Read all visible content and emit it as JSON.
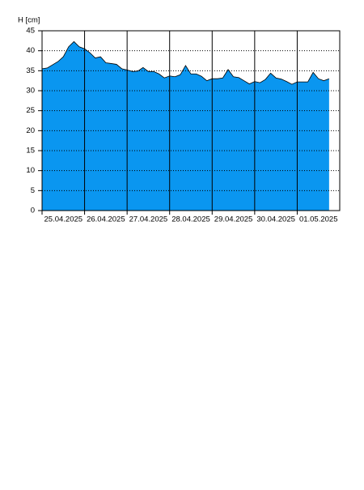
{
  "chart_data": {
    "type": "area",
    "y_label": "H [cm]",
    "x": [
      0,
      0.125,
      0.25,
      0.375,
      0.5,
      0.625,
      0.75,
      0.875,
      1,
      1.125,
      1.25,
      1.375,
      1.5,
      1.625,
      1.75,
      1.875,
      2,
      2.125,
      2.25,
      2.375,
      2.5,
      2.625,
      2.75,
      2.875,
      3,
      3.125,
      3.25,
      3.375,
      3.5,
      3.625,
      3.75,
      3.875,
      4,
      4.125,
      4.25,
      4.375,
      4.5,
      4.625,
      4.75,
      4.875,
      5,
      5.125,
      5.25,
      5.375,
      5.5,
      5.625,
      5.75,
      5.875,
      6,
      6.125,
      6.25,
      6.375,
      6.5,
      6.625,
      6.75
    ],
    "series": [
      {
        "name": "H",
        "color": "#0a96f0",
        "values": [
          35.5,
          35.7,
          36.5,
          37.3,
          38.5,
          41,
          42.3,
          41,
          40.5,
          39.5,
          38.2,
          38.5,
          37,
          36.8,
          36.6,
          35.5,
          35.2,
          34.8,
          34.9,
          35.8,
          34.8,
          34.8,
          34.2,
          33.2,
          33.7,
          33.5,
          34,
          36.3,
          34.2,
          34.2,
          33.6,
          32.5,
          33,
          33,
          33.2,
          35.3,
          33.5,
          33.3,
          32.5,
          31.7,
          32.3,
          32,
          32.8,
          34.4,
          33.2,
          32.9,
          32.3,
          31.6,
          32.2,
          32.2,
          32.2,
          34.6,
          33,
          32.5,
          33
        ]
      }
    ],
    "xlim": [
      0,
      7
    ],
    "xticks": [
      {
        "value": 0,
        "label": "25.04.2025"
      },
      {
        "value": 1,
        "label": "26.04.2025"
      },
      {
        "value": 2,
        "label": "27.04.2025"
      },
      {
        "value": 3,
        "label": "28.04.2025"
      },
      {
        "value": 4,
        "label": "29.04.2025"
      },
      {
        "value": 5,
        "label": "30.04.2025"
      },
      {
        "value": 6,
        "label": "01.05.2025"
      }
    ],
    "ylim": [
      0,
      45
    ],
    "yticks": [
      0,
      5,
      10,
      15,
      20,
      25,
      30,
      35,
      40,
      45
    ],
    "grid": true
  }
}
